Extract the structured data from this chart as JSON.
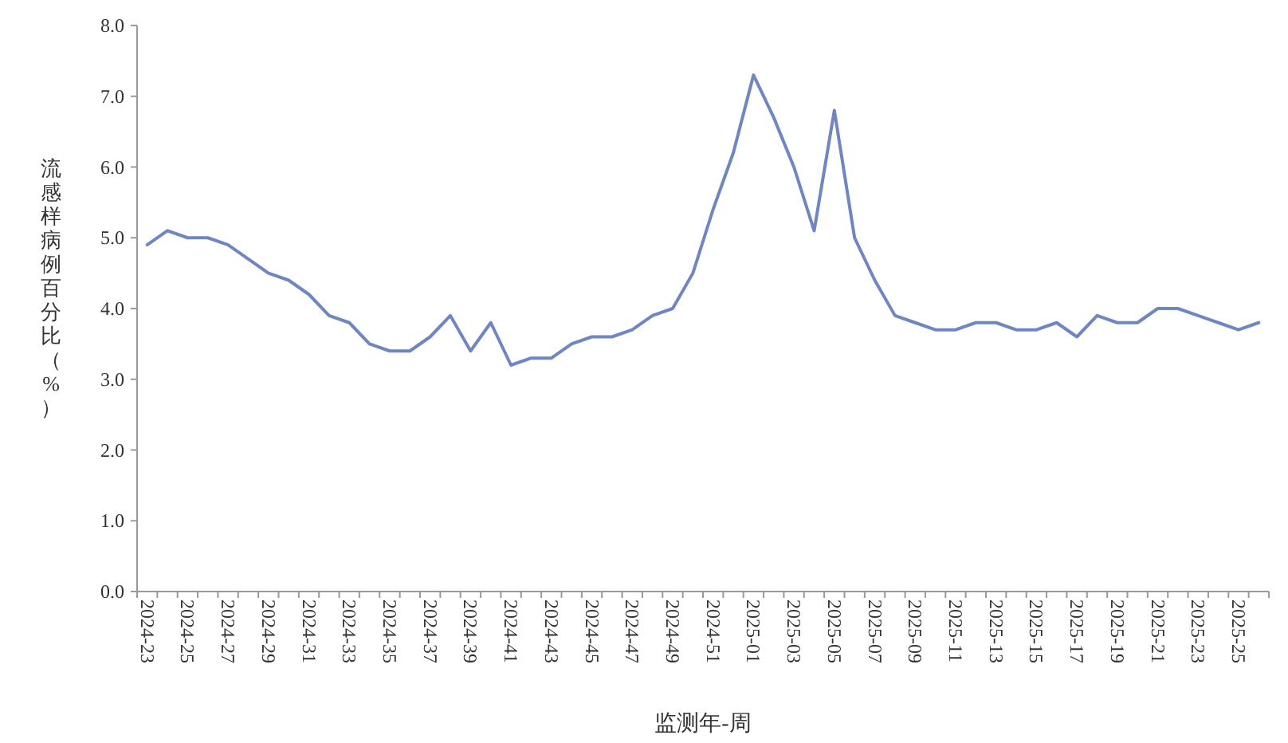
{
  "chart_data": {
    "type": "line",
    "xlabel": "监测年-周",
    "ylabel": "流感样病例百分比（%）",
    "categories": [
      "2024-23",
      null,
      "2024-25",
      null,
      "2024-27",
      null,
      "2024-29",
      null,
      "2024-31",
      null,
      "2024-33",
      null,
      "2024-35",
      null,
      "2024-37",
      null,
      "2024-39",
      null,
      "2024-41",
      null,
      "2024-43",
      null,
      "2024-45",
      null,
      "2024-47",
      null,
      "2024-49",
      null,
      "2024-51",
      null,
      "2025-01",
      null,
      "2025-03",
      null,
      "2025-05",
      null,
      "2025-07",
      null,
      "2025-09",
      null,
      "2025-11",
      null,
      "2025-13",
      null,
      "2025-15",
      null,
      "2025-17",
      null,
      "2025-19",
      null,
      "2025-21",
      null,
      "2025-23",
      null,
      "2025-25",
      null
    ],
    "series": [
      {
        "color": "#6f86c2",
        "values": [
          4.9,
          5.1,
          5.0,
          5.0,
          4.9,
          4.7,
          4.5,
          4.4,
          4.2,
          3.9,
          3.8,
          3.5,
          3.4,
          3.4,
          3.6,
          3.9,
          3.4,
          3.8,
          3.2,
          3.3,
          3.3,
          3.5,
          3.6,
          3.6,
          3.7,
          3.9,
          4.0,
          4.5,
          5.4,
          6.2,
          7.3,
          6.7,
          6.0,
          5.1,
          6.8,
          5.0,
          4.4,
          3.9,
          3.8,
          3.7,
          3.7,
          3.8,
          3.8,
          3.7,
          3.7,
          3.8,
          3.6,
          3.9,
          3.8,
          3.8,
          4.0,
          4.0,
          3.9,
          3.8,
          3.7,
          3.8
        ]
      }
    ],
    "ylim": [
      0,
      8
    ],
    "yticks": [
      {
        "value": 0,
        "label": "0.0"
      },
      {
        "value": 1,
        "label": "1.0"
      },
      {
        "value": 2,
        "label": "2.0"
      },
      {
        "value": 3,
        "label": "3.0"
      },
      {
        "value": 4,
        "label": "4.0"
      },
      {
        "value": 5,
        "label": "5.0"
      },
      {
        "value": 6,
        "label": "6.0"
      },
      {
        "value": 7,
        "label": "7.0"
      },
      {
        "value": 8,
        "label": "8.0"
      }
    ],
    "marker": "none",
    "line_style": "solid"
  }
}
